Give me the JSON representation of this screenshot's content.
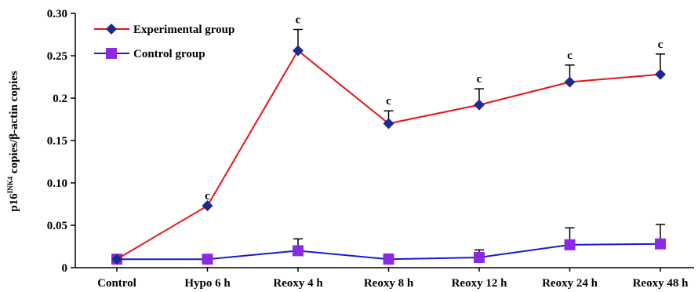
{
  "chart_data": {
    "type": "line",
    "categories": [
      "Control",
      "Hypo 6 h",
      "Reoxy 4 h",
      "Reoxy 8 h",
      "Reoxy 12 h",
      "Reoxy 24 h",
      "Reoxy 48 h"
    ],
    "ylabel_main": "p16",
    "ylabel_sup": "INK4",
    "ylabel_rest": " copies/β-actin copies",
    "ylim": [
      0,
      0.3
    ],
    "yticks": [
      {
        "value": 0,
        "label": "0"
      },
      {
        "value": 0.05,
        "label": "0.05"
      },
      {
        "value": 0.1,
        "label": "0.10"
      },
      {
        "value": 0.15,
        "label": "0.15"
      },
      {
        "value": 0.2,
        "label": "0.2"
      },
      {
        "value": 0.25,
        "label": "0.25"
      },
      {
        "value": 0.3,
        "label": "0.30"
      }
    ],
    "series": [
      {
        "name": "Experimental group",
        "color": "#e8141a",
        "marker": "diamond",
        "marker_color": "#1c2a8c",
        "values": [
          0.01,
          0.073,
          0.256,
          0.17,
          0.192,
          0.219,
          0.228
        ],
        "errors": [
          0.0,
          0.0,
          0.025,
          0.015,
          0.019,
          0.02,
          0.024
        ],
        "annotations": [
          "",
          "c",
          "c",
          "c",
          "c",
          "c",
          "c"
        ]
      },
      {
        "name": "Control group",
        "color": "#1a1ad0",
        "marker": "square",
        "marker_color": "#8a2be2",
        "values": [
          0.01,
          0.01,
          0.02,
          0.01,
          0.012,
          0.027,
          0.028
        ],
        "errors": [
          0.0,
          0.0,
          0.014,
          0.006,
          0.009,
          0.02,
          0.023
        ],
        "annotations": [
          "",
          "",
          "",
          "",
          "",
          "",
          ""
        ]
      }
    ],
    "legend_position": "top-left"
  }
}
